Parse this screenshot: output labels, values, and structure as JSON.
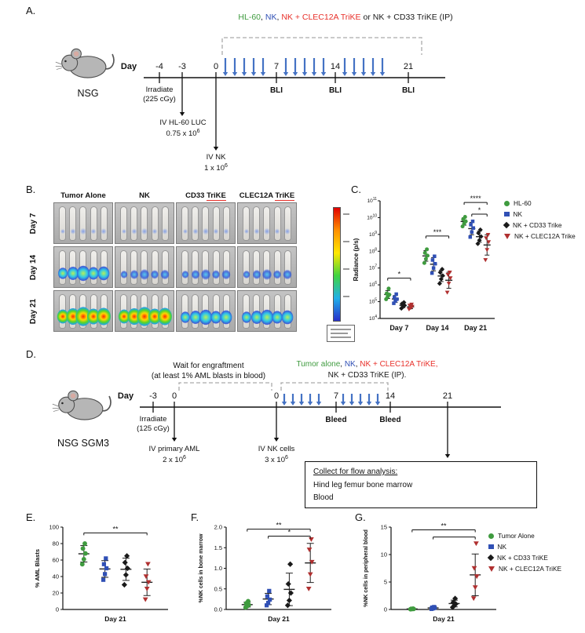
{
  "colors": {
    "green": "#3f9b3f",
    "blue": "#3050b5",
    "black": "#1a1a1a",
    "red_marker": "#b03030",
    "red_text": "#e8302a",
    "arrow_blue": "#4472c4"
  },
  "panelA": {
    "label": "A.",
    "header_parts": [
      {
        "text": "HL-60",
        "color": "#3f9b3f"
      },
      {
        "text": ", ",
        "color": "#1a1a1a"
      },
      {
        "text": "NK",
        "color": "#3050b5"
      },
      {
        "text": ", ",
        "color": "#1a1a1a"
      },
      {
        "text": "NK + CLEC12A TriKE",
        "color": "#e8302a"
      },
      {
        "text": " or NK + CD33 TriKE (IP)",
        "color": "#1a1a1a"
      }
    ],
    "mouse_label": "NSG",
    "day_word": "Day",
    "ticks": [
      "-4",
      "-3",
      "0",
      "7",
      "14",
      "21"
    ],
    "bli_label": "BLI",
    "irradiate_line1": "Irradiate",
    "irradiate_line2": "(225 cGy)",
    "iv1_line1": "IV HL-60 LUC",
    "iv1_line2": "0.75 x 10",
    "iv1_sup": "6",
    "iv2_line1": "IV NK",
    "iv2_line2": "1 x 10",
    "iv2_sup": "6"
  },
  "panelB": {
    "label": "B.",
    "col_headers": [
      {
        "pre": "Tumor Alone",
        "trike": ""
      },
      {
        "pre": "NK",
        "trike": ""
      },
      {
        "pre": "CD33 ",
        "trike": "TriKE"
      },
      {
        "pre": "CLEC12A ",
        "trike": "TriKE"
      }
    ],
    "row_labels": [
      "Day 7",
      "Day 14",
      "Day 21"
    ],
    "mice_per_image": 5,
    "intensities": [
      [
        "faint",
        "faint",
        "faint",
        "faint"
      ],
      [
        "medium",
        "low",
        "low",
        "low"
      ],
      [
        "high",
        "high",
        "medium",
        "medium"
      ]
    ]
  },
  "panelC": {
    "label": "C.",
    "legend": [
      {
        "label": "HL-60",
        "marker": "circle",
        "color": "#3f9b3f"
      },
      {
        "label": "NK",
        "marker": "square",
        "color": "#3050b5"
      },
      {
        "label": "NK + CD33 Trike",
        "marker": "diamond",
        "color": "#1a1a1a"
      },
      {
        "label": "NK + CLEC12A Trike",
        "marker": "triangle",
        "color": "#b03030"
      }
    ]
  },
  "panelD": {
    "label": "D.",
    "wait_line1": "Wait for engraftment",
    "wait_line2": "(at least 1% AML blasts in blood)",
    "header_parts": [
      {
        "text": "Tumor alone",
        "color": "#3f9b3f"
      },
      {
        "text": ", ",
        "color": "#1a1a1a"
      },
      {
        "text": "NK",
        "color": "#3050b5"
      },
      {
        "text": ", ",
        "color": "#1a1a1a"
      },
      {
        "text": "NK + CLEC12A TriKE,",
        "color": "#e8302a"
      },
      {
        "br": true
      },
      {
        "text": "NK + CD33 TriKE (IP).",
        "color": "#1a1a1a"
      }
    ],
    "mouse_label": "NSG SGM3",
    "day_word": "Day",
    "ticks": [
      "-3",
      "0",
      "0",
      "7",
      "14",
      "21"
    ],
    "bleed_label": "Bleed",
    "irradiate_line1": "Irradiate",
    "irradiate_line2": "(125 cGy)",
    "iv1_line1": "IV primary AML",
    "iv1_line2": "2 x 10",
    "iv1_sup": "6",
    "iv2_line1": "IV NK cells",
    "iv2_line2": "3 x 10",
    "iv2_sup": "6",
    "box_line1": "Collect for flow analysis:",
    "box_line2": "Hind leg femur bone marrow",
    "box_line3": "Blood"
  },
  "panelE": {
    "label": "E."
  },
  "panelF": {
    "label": "F."
  },
  "panelG": {
    "label": "G.",
    "legend": [
      {
        "label": "Tumor Alone",
        "marker": "circle",
        "color": "#3f9b3f"
      },
      {
        "label": "NK",
        "marker": "square",
        "color": "#3050b5"
      },
      {
        "label": "NK + CD33 TriKE",
        "marker": "diamond",
        "color": "#1a1a1a"
      },
      {
        "label": "NK + CLEC12A TriKE",
        "marker": "triangle",
        "color": "#b03030"
      }
    ]
  },
  "chart_data": [
    {
      "id": "chartC",
      "type": "scatter",
      "yscale": "log",
      "ylabel": "Radiance (p/s)",
      "y_exponents": [
        4,
        5,
        6,
        7,
        8,
        9,
        10,
        11
      ],
      "categories": [
        "Day 7",
        "Day 14",
        "Day 21"
      ],
      "series": [
        {
          "name": "HL-60",
          "marker": "circle",
          "color": "#3f9b3f",
          "values": [
            [
              140000.0,
              200000.0,
              260000.0,
              310000.0,
              600000.0
            ],
            [
              20000000.0,
              35000000.0,
              55000000.0,
              80000000.0,
              130000000.0
            ],
            [
              3000000000.0,
              4500000000.0,
              6000000000.0,
              8000000000.0,
              11000000000.0
            ]
          ]
        },
        {
          "name": "NK",
          "marker": "square",
          "color": "#3050b5",
          "values": [
            [
              80000.0,
              110000.0,
              140000.0,
              180000.0,
              280000.0
            ],
            [
              5000000.0,
              10000000.0,
              18000000.0,
              30000000.0,
              50000000.0
            ],
            [
              700000000.0,
              1400000000.0,
              2400000000.0,
              3800000000.0,
              6000000000.0
            ]
          ]
        },
        {
          "name": "NK + CD33 Trike",
          "marker": "diamond",
          "color": "#1a1a1a",
          "values": [
            [
              40000.0,
              50000.0,
              60000.0,
              75000.0,
              90000.0
            ],
            [
              1200000.0,
              2200000.0,
              3500000.0,
              5500000.0,
              8500000.0
            ],
            [
              280000000.0,
              450000000.0,
              750000000.0,
              1200000000.0,
              1900000000.0
            ]
          ]
        },
        {
          "name": "NK + CLEC12A Trike",
          "marker": "triangle",
          "color": "#b03030",
          "values": [
            [
              35000.0,
              42000.0,
              50000.0,
              58000.0,
              68000.0
            ],
            [
              350000.0,
              1200000.0,
              2500000.0,
              4000000.0,
              5500000.0
            ],
            [
              30000000.0,
              120000000.0,
              350000000.0,
              600000000.0,
              950000000.0
            ]
          ]
        }
      ],
      "sig_bars": [
        {
          "cat": 0,
          "s1": 0,
          "s2": 3,
          "y": 2500000.0,
          "label": "*"
        },
        {
          "cat": 1,
          "s1": 0,
          "s2": 3,
          "y": 800000000.0,
          "label": "***"
        },
        {
          "cat": 2,
          "s1": 0,
          "s2": 3,
          "y": 80000000000.0,
          "label": "****"
        },
        {
          "cat": 2,
          "s1": 1,
          "s2": 3,
          "y": 16000000000.0,
          "label": "*"
        }
      ]
    },
    {
      "id": "chartE",
      "type": "scatter",
      "yscale": "linear",
      "ylabel": "% AML Blasts",
      "ylim": [
        0,
        100
      ],
      "y_ticks": [
        {
          "v": 0,
          "t": "0"
        },
        {
          "v": 20,
          "t": "20"
        },
        {
          "v": 40,
          "t": "40"
        },
        {
          "v": 60,
          "t": "60"
        },
        {
          "v": 80,
          "t": "80"
        },
        {
          "v": 100,
          "t": "100"
        }
      ],
      "categories": [
        "Day 21"
      ],
      "series": [
        {
          "name": "Tumor Alone",
          "marker": "circle",
          "color": "#3f9b3f",
          "values": [
            [
              55,
              61,
              68,
              74,
              80
            ]
          ]
        },
        {
          "name": "NK",
          "marker": "square",
          "color": "#3050b5",
          "values": [
            [
              36,
              43,
              50,
              55,
              62
            ]
          ]
        },
        {
          "name": "NK + CD33 TriKE",
          "marker": "diamond",
          "color": "#1a1a1a",
          "values": [
            [
              30,
              42,
              50,
              57,
              65
            ]
          ]
        },
        {
          "name": "NK + CLEC12A TriKE",
          "marker": "triangle",
          "color": "#b03030",
          "values": [
            [
              12,
              25,
              33,
              40,
              55
            ]
          ]
        }
      ],
      "sig_bars": [
        {
          "cat": 0,
          "s1": 0,
          "s2": 3,
          "y": 93,
          "label": "**"
        }
      ]
    },
    {
      "id": "chartF",
      "type": "scatter",
      "yscale": "linear",
      "ylabel": "%NK cells in bone marrow",
      "ylim": [
        0,
        2
      ],
      "y_ticks": [
        {
          "v": 0,
          "t": "0.0"
        },
        {
          "v": 0.5,
          "t": "0.5"
        },
        {
          "v": 1,
          "t": "1.0"
        },
        {
          "v": 1.5,
          "t": "1.5"
        },
        {
          "v": 2,
          "t": "2.0"
        }
      ],
      "categories": [
        "Day 21"
      ],
      "series": [
        {
          "name": "Tumor Alone",
          "marker": "circle",
          "color": "#3f9b3f",
          "values": [
            [
              0.05,
              0.08,
              0.11,
              0.15,
              0.2
            ]
          ]
        },
        {
          "name": "NK",
          "marker": "square",
          "color": "#3050b5",
          "values": [
            [
              0.1,
              0.16,
              0.24,
              0.32,
              0.45
            ]
          ]
        },
        {
          "name": "NK + CD33 TriKE",
          "marker": "diamond",
          "color": "#1a1a1a",
          "values": [
            [
              0.1,
              0.22,
              0.4,
              0.62,
              1.1
            ]
          ]
        },
        {
          "name": "NK + CLEC12A TriKE",
          "marker": "triangle",
          "color": "#b03030",
          "values": [
            [
              0.5,
              0.85,
              1.15,
              1.45,
              1.7
            ]
          ]
        }
      ],
      "sig_bars": [
        {
          "cat": 0,
          "s1": 0,
          "s2": 3,
          "y": 1.95,
          "label": "**"
        },
        {
          "cat": 0,
          "s1": 1,
          "s2": 3,
          "y": 1.78,
          "label": "*"
        }
      ]
    },
    {
      "id": "chartG",
      "type": "scatter",
      "yscale": "linear",
      "ylabel": "%NK cells in peripheral blood",
      "ylim": [
        0,
        15
      ],
      "y_ticks": [
        {
          "v": 0,
          "t": "0"
        },
        {
          "v": 5,
          "t": "5"
        },
        {
          "v": 10,
          "t": "10"
        },
        {
          "v": 15,
          "t": "15"
        }
      ],
      "categories": [
        "Day 21"
      ],
      "series": [
        {
          "name": "Tumor Alone",
          "marker": "circle",
          "color": "#3f9b3f",
          "values": [
            [
              0.05,
              0.08,
              0.1,
              0.12,
              0.15
            ]
          ]
        },
        {
          "name": "NK",
          "marker": "square",
          "color": "#3050b5",
          "values": [
            [
              0.1,
              0.2,
              0.3,
              0.35,
              0.45
            ]
          ]
        },
        {
          "name": "NK + CD33 TriKE",
          "marker": "diamond",
          "color": "#1a1a1a",
          "values": [
            [
              0.4,
              0.7,
              1.0,
              1.3,
              2.0
            ]
          ]
        },
        {
          "name": "NK + CLEC12A TriKE",
          "marker": "triangle",
          "color": "#b03030",
          "values": [
            [
              2.0,
              4.0,
              6.0,
              7.5,
              12.0
            ]
          ]
        }
      ],
      "sig_bars": [
        {
          "cat": 0,
          "s1": 0,
          "s2": 3,
          "y": 14.5,
          "label": "**"
        },
        {
          "cat": 0,
          "s1": 1,
          "s2": 3,
          "y": 13.2,
          "label": ""
        }
      ]
    }
  ]
}
